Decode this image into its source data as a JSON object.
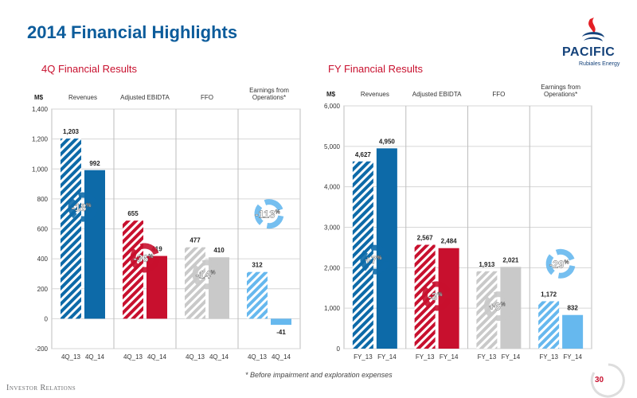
{
  "page": {
    "title": "2014 Financial Highlights",
    "footnote": "* Before impairment and exploration expenses",
    "footer_label": "Investor Relations",
    "page_number": "30"
  },
  "logo": {
    "name": "PACIFIC",
    "tagline": "Rubiales Energy"
  },
  "colors": {
    "blue_dark": "#0d6aa8",
    "red": "#c8102e",
    "gray": "#c9c9c9",
    "blue_light": "#66b8ee",
    "brand_blue": "#0c5c9b",
    "subtitle_red": "#c8102e"
  },
  "chart_data": [
    {
      "type": "bar",
      "title": "4Q Financial Results",
      "unit_label": "M$",
      "ylim": [
        -200,
        1400
      ],
      "yticks": [
        -200,
        0,
        200,
        400,
        600,
        800,
        1000,
        1200,
        1400
      ],
      "tick_labels": [
        "-200",
        "0",
        "200",
        "400",
        "600",
        "800",
        "1,000",
        "1,200",
        "1,400"
      ],
      "groups": [
        {
          "label": "Revenues",
          "color": "blue_dark",
          "change": "-18",
          "bars": [
            {
              "x": "4Q_13",
              "value": 1203,
              "label": "1,203"
            },
            {
              "x": "4Q_14",
              "value": 992,
              "label": "992"
            }
          ]
        },
        {
          "label": "Adjusted EBIDTA",
          "color": "red",
          "change": "-36",
          "bars": [
            {
              "x": "4Q_13",
              "value": 655,
              "label": "655"
            },
            {
              "x": "4Q_14",
              "value": 419,
              "label": "419"
            }
          ]
        },
        {
          "label": "FFO",
          "color": "gray",
          "change": "-14",
          "bars": [
            {
              "x": "4Q_13",
              "value": 477,
              "label": "477"
            },
            {
              "x": "4Q_14",
              "value": 410,
              "label": "410"
            }
          ]
        },
        {
          "label": "Earnings from Operations*",
          "label_lines": [
            "Earnings from",
            "Operations*"
          ],
          "color": "blue_light",
          "change": "-113",
          "bars": [
            {
              "x": "4Q_13",
              "value": 312,
              "label": "312"
            },
            {
              "x": "4Q_14",
              "value": -41,
              "label": "-41"
            }
          ]
        }
      ]
    },
    {
      "type": "bar",
      "title": "FY Financial Results",
      "unit_label": "M$",
      "ylim": [
        0,
        6000
      ],
      "yticks": [
        0,
        1000,
        2000,
        3000,
        4000,
        5000,
        6000
      ],
      "tick_labels": [
        "0",
        "1,000",
        "2,000",
        "3,000",
        "4,000",
        "5,000",
        "6,000"
      ],
      "groups": [
        {
          "label": "Revenues",
          "color": "blue_dark",
          "change": "+7",
          "bars": [
            {
              "x": "FY_13",
              "value": 4627,
              "label": "4,627"
            },
            {
              "x": "FY_14",
              "value": 4950,
              "label": "4,950"
            }
          ]
        },
        {
          "label": "Adjusted EBIDTA",
          "color": "red",
          "change": "-3",
          "bars": [
            {
              "x": "FY_13",
              "value": 2567,
              "label": "2,567"
            },
            {
              "x": "FY_14",
              "value": 2484,
              "label": "2,484"
            }
          ]
        },
        {
          "label": "FFO",
          "color": "gray",
          "change": "+6",
          "bars": [
            {
              "x": "FY_13",
              "value": 1913,
              "label": "1,913"
            },
            {
              "x": "FY_14",
              "value": 2021,
              "label": "2,021"
            }
          ]
        },
        {
          "label": "Earnings from Operations*",
          "label_lines": [
            "Earnings from",
            "Operations*"
          ],
          "color": "blue_light",
          "change": "-29",
          "bars": [
            {
              "x": "FY_13",
              "value": 1172,
              "label": "1,172"
            },
            {
              "x": "FY_14",
              "value": 832,
              "label": "832"
            }
          ]
        }
      ]
    }
  ]
}
